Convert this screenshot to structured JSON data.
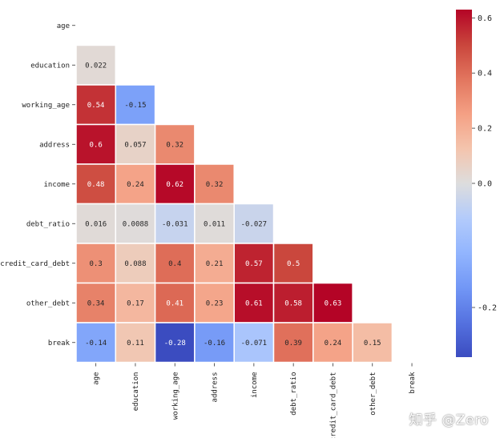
{
  "chart_data": {
    "type": "heatmap",
    "title": "",
    "variables": [
      "age",
      "education",
      "working_age",
      "address",
      "income",
      "debt_ratio",
      "credit_card_debt",
      "other_debt",
      "break"
    ],
    "lower_triangle_values": [
      [],
      [
        0.022
      ],
      [
        0.54,
        -0.15
      ],
      [
        0.6,
        0.057,
        0.32
      ],
      [
        0.48,
        0.24,
        0.62,
        0.32
      ],
      [
        0.016,
        0.0088,
        -0.031,
        0.011,
        -0.027
      ],
      [
        0.3,
        0.088,
        0.4,
        0.21,
        0.57,
        0.5
      ],
      [
        0.34,
        0.17,
        0.41,
        0.23,
        0.61,
        0.58,
        0.63
      ],
      [
        -0.14,
        0.11,
        -0.28,
        -0.16,
        -0.071,
        0.39,
        0.24,
        0.15
      ]
    ],
    "value_labels": [
      [],
      [
        "0.022"
      ],
      [
        "0.54",
        "-0.15"
      ],
      [
        "0.6",
        "0.057",
        "0.32"
      ],
      [
        "0.48",
        "0.24",
        "0.62",
        "0.32"
      ],
      [
        "0.016",
        "0.0088",
        "-0.031",
        "0.011",
        "-0.027"
      ],
      [
        "0.3",
        "0.088",
        "0.4",
        "0.21",
        "0.57",
        "0.5"
      ],
      [
        "0.34",
        "0.17",
        "0.41",
        "0.23",
        "0.61",
        "0.58",
        "0.63"
      ],
      [
        "-0.14",
        "0.11",
        "-0.28",
        "-0.16",
        "-0.071",
        "0.39",
        "0.24",
        "0.15"
      ]
    ],
    "colormap": "coolwarm",
    "color_range": [
      -0.28,
      0.63
    ],
    "colorbar_ticks": [
      {
        "value": 0.6,
        "label": "0.6"
      },
      {
        "value": 0.4,
        "label": "0.4"
      },
      {
        "value": 0.2,
        "label": "0.2"
      },
      {
        "value": 0.0,
        "label": "0.0"
      },
      {
        "value": -0.2,
        "label": "-0.2"
      }
    ],
    "mask": "upper triangle including diagonal",
    "cell_border_color": "#ffffff"
  },
  "watermark": "知乎 @Zero"
}
